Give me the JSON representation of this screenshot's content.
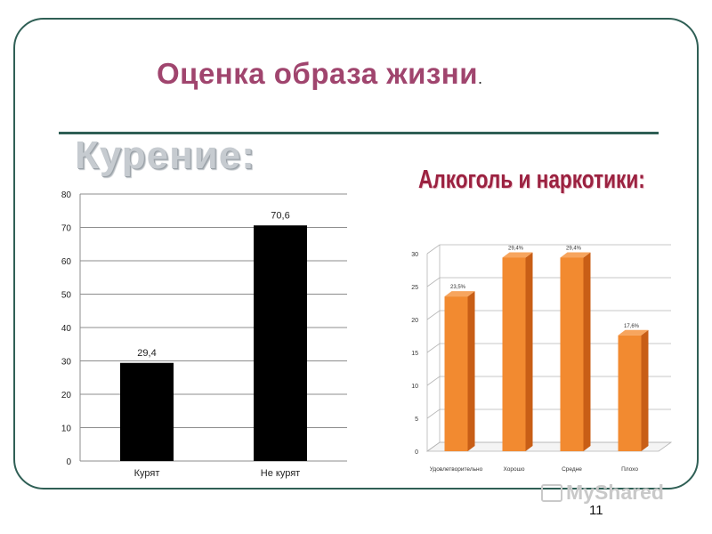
{
  "slide": {
    "title": "Оценка образа  жизни",
    "title_dot": ".",
    "smoking_heading": "Курение:",
    "alcohol_heading": "Алкоголь и наркотики:",
    "page_number": "11",
    "watermark": "MyShared",
    "watermark_icon": "presentation-board-icon"
  },
  "colors": {
    "title": "#a0456e",
    "frame": "#2f5f55",
    "smoking_bar": "#000000",
    "alcohol_bar_front": "#f28a30",
    "alcohol_bar_side": "#c85e16",
    "alcohol_heading": "#9b2140"
  },
  "chart_data": [
    {
      "type": "bar",
      "categories": [
        "Курят",
        "Не курят"
      ],
      "values": [
        29.4,
        70.6
      ],
      "data_labels": [
        "29,4",
        "70,6"
      ],
      "y_ticks": [
        "0",
        "10",
        "20",
        "30",
        "40",
        "50",
        "60",
        "70",
        "80"
      ],
      "ylim": [
        0,
        80
      ],
      "grid": true,
      "legend": "none"
    },
    {
      "type": "bar",
      "style": "3d-column",
      "categories": [
        "Удовлетворительно",
        "Хорошо",
        "Средне",
        "Плохо"
      ],
      "values": [
        23.5,
        29.4,
        29.4,
        17.6
      ],
      "data_labels": [
        "23,5%",
        "29,4%",
        "29,4%",
        "17,6%"
      ],
      "y_ticks": [
        "0",
        "5",
        "10",
        "15",
        "20",
        "25",
        "30"
      ],
      "ylim": [
        0,
        30
      ],
      "grid": true,
      "legend": "none"
    }
  ]
}
